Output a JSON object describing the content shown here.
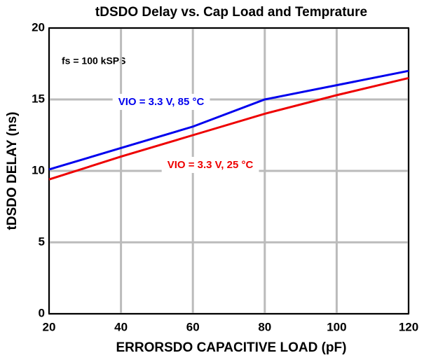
{
  "chart_data": {
    "type": "line",
    "title": "tDSDO Delay vs. Cap Load and Temprature",
    "x_label": "ERRORSDO CAPACITIVE LOAD (pF)",
    "y_label": "tDSDO DELAY (ns)",
    "annotation": "fs = 100 kSPS",
    "x": [
      20,
      40,
      60,
      80,
      100,
      120
    ],
    "series": [
      {
        "name": "VIO = 3.3 V, 85 °C",
        "color": "#0000ee",
        "values": [
          10.1,
          11.6,
          13.1,
          15.0,
          16.0,
          17.0
        ]
      },
      {
        "name": "VIO = 3.3 V, 25 °C",
        "color": "#ee0000",
        "values": [
          9.4,
          11.0,
          12.5,
          14.0,
          15.3,
          16.5
        ]
      }
    ],
    "xlim": [
      20,
      120
    ],
    "xticks": [
      20,
      40,
      60,
      80,
      100,
      120
    ],
    "ylim": [
      0,
      20
    ],
    "yticks": [
      0,
      5,
      10,
      15,
      20
    ],
    "grid": true
  }
}
